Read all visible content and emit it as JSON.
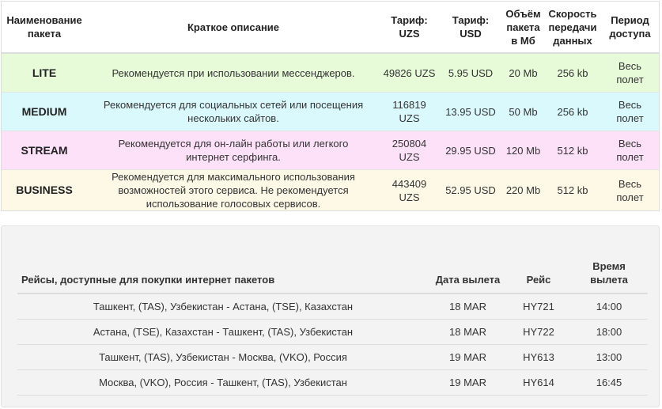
{
  "packages": {
    "headers": {
      "name": "Наименование пакета",
      "description": "Краткое описание",
      "tariff_uzs": "Тариф: UZS",
      "tariff_usd": "Тариф: USD",
      "volume": "Объём пакета в Мб",
      "speed": "Скорость передачи данных",
      "period": "Период доступа"
    },
    "rows": [
      {
        "name": "LITE",
        "description": "Рекомендуется при использовании мессенджеров.",
        "uzs": "49826 UZS",
        "usd": "5.95 USD",
        "volume": "20 Mb",
        "speed": "256 kb",
        "period": "Весь полет",
        "color": "#e8fbd9"
      },
      {
        "name": "MEDIUM",
        "description": "Рекомендуется для социальных сетей или посещения нескольких сайтов.",
        "uzs": "116819 UZS",
        "usd": "13.95 USD",
        "volume": "50 Mb",
        "speed": "256 kb",
        "period": "Весь полет",
        "color": "#daf9fd"
      },
      {
        "name": "STREAM",
        "description": "Рекомендуется для он-лайн работы или легкого интернет серфинга.",
        "uzs": "250804 UZS",
        "usd": "29.95 USD",
        "volume": "120 Mb",
        "speed": "512 kb",
        "period": "Весь полет",
        "color": "#fde1f8"
      },
      {
        "name": "BUSINESS",
        "description": "Рекомендуется для максимального использования возможностей этого сервиса. Не рекомендуется использование голосовых сервисов.",
        "uzs": "443409 UZS",
        "usd": "52.95 USD",
        "volume": "220 Mb",
        "speed": "512 kb",
        "period": "Весь полет",
        "color": "#fdf9e6"
      }
    ]
  },
  "flights": {
    "headers": {
      "route": "Рейсы, доступные для покупки интернет пакетов",
      "date": "Дата вылета",
      "flight": "Рейс",
      "time": "Время вылета"
    },
    "rows": [
      {
        "route": "Ташкент, (TAS), Узбекистан - Астана, (TSE), Казахстан",
        "date": "18 MAR",
        "flight": "HY721",
        "time": "14:00"
      },
      {
        "route": "Астана, (TSE), Казахстан - Ташкент, (TAS), Узбекистан",
        "date": "18 MAR",
        "flight": "HY722",
        "time": "18:00"
      },
      {
        "route": "Ташкент, (TAS), Узбекистан - Москва, (VKO), Россия",
        "date": "19 MAR",
        "flight": "HY613",
        "time": "13:00"
      },
      {
        "route": "Москва, (VKO), Россия - Ташкент, (TAS), Узбекистан",
        "date": "19 MAR",
        "flight": "HY614",
        "time": "16:45"
      }
    ]
  }
}
